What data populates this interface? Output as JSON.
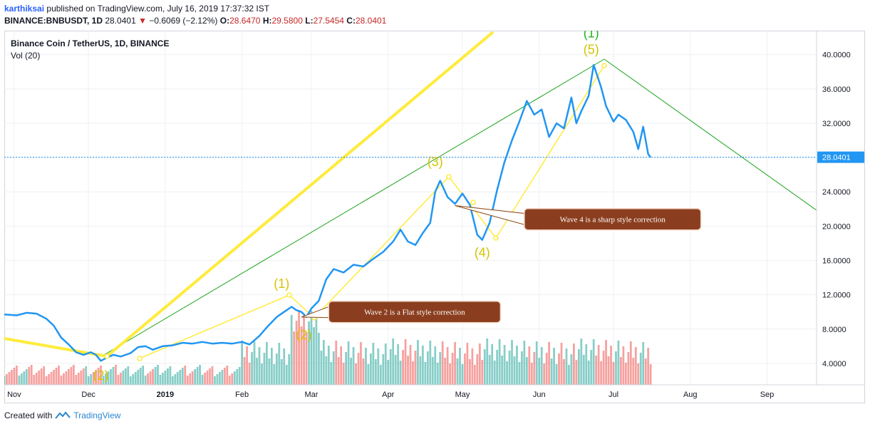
{
  "header": {
    "user": "karthiksai",
    "published": "published on TradingView.com, July 16, 2019 17:37:32 IST",
    "symbol": "BINANCE:BNBUSDT, 1D",
    "last": "28.0401",
    "change": "−0.6069 (−2.12%)",
    "o_label": "O:",
    "o": "28.6470",
    "h_label": "H:",
    "h": "29.5800",
    "l_label": "L:",
    "l": "27.5454",
    "c_label": "C:",
    "c": "28.0401"
  },
  "footer": {
    "created_with": "Created with",
    "brand": "TradingView"
  },
  "chart_data": {
    "type": "line",
    "title": "Binance Coin / TetherUS, 1D, BINANCE",
    "subtitle": "Vol (20)",
    "last_price_label": "28.0401",
    "last_price": 28.0401,
    "ylim": [
      1.5,
      42.8
    ],
    "x_tick_labels": [
      "Nov",
      "Dec",
      "2019",
      "Feb",
      "Mar",
      "Apr",
      "May",
      "Jun",
      "Jul",
      "Aug",
      "Sep"
    ],
    "x_tick_dates": [
      "2018-11-01",
      "2018-12-01",
      "2019-01-01",
      "2019-02-01",
      "2019-03-01",
      "2019-04-01",
      "2019-05-01",
      "2019-06-01",
      "2019-07-01",
      "2019-08-01",
      "2019-09-01"
    ],
    "x_range": [
      "2018-10-28",
      "2019-09-21"
    ],
    "y_tick_labels": [
      "4.0000",
      "8.0000",
      "12.0000",
      "16.0000",
      "20.0000",
      "24.0000",
      "28.0000",
      "32.0000",
      "36.0000",
      "40.0000"
    ],
    "y_tick_values": [
      4,
      8,
      12,
      16,
      20,
      24,
      28,
      32,
      36,
      40
    ],
    "series": [
      {
        "color": "#2196f3",
        "points": [
          [
            "2018-10-28",
            9.7
          ],
          [
            "2018-11-02",
            9.6
          ],
          [
            "2018-11-06",
            9.9
          ],
          [
            "2018-11-10",
            9.8
          ],
          [
            "2018-11-14",
            9.2
          ],
          [
            "2018-11-17",
            8.4
          ],
          [
            "2018-11-20",
            7.0
          ],
          [
            "2018-11-23",
            6.2
          ],
          [
            "2018-11-26",
            5.3
          ],
          [
            "2018-11-29",
            5.0
          ],
          [
            "2018-12-02",
            5.3
          ],
          [
            "2018-12-04",
            5.0
          ],
          [
            "2018-12-06",
            4.3
          ],
          [
            "2018-12-08",
            4.6
          ],
          [
            "2018-12-11",
            5.0
          ],
          [
            "2018-12-14",
            4.8
          ],
          [
            "2018-12-18",
            5.2
          ],
          [
            "2018-12-21",
            5.9
          ],
          [
            "2018-12-24",
            6.0
          ],
          [
            "2018-12-27",
            5.6
          ],
          [
            "2018-12-31",
            6.0
          ],
          [
            "2019-01-04",
            6.1
          ],
          [
            "2019-01-08",
            6.4
          ],
          [
            "2019-01-12",
            6.3
          ],
          [
            "2019-01-16",
            6.5
          ],
          [
            "2019-01-20",
            6.3
          ],
          [
            "2019-01-24",
            6.4
          ],
          [
            "2019-01-28",
            6.3
          ],
          [
            "2019-02-01",
            6.5
          ],
          [
            "2019-02-04",
            6.2
          ],
          [
            "2019-02-08",
            7.2
          ],
          [
            "2019-02-11",
            8.2
          ],
          [
            "2019-02-15",
            9.4
          ],
          [
            "2019-02-18",
            10.0
          ],
          [
            "2019-02-21",
            10.6
          ],
          [
            "2019-02-23",
            10.2
          ],
          [
            "2019-02-25",
            10.0
          ],
          [
            "2019-02-27",
            9.4
          ],
          [
            "2019-03-01",
            10.4
          ],
          [
            "2019-03-04",
            11.3
          ],
          [
            "2019-03-07",
            13.8
          ],
          [
            "2019-03-10",
            15.0
          ],
          [
            "2019-03-14",
            14.6
          ],
          [
            "2019-03-18",
            15.5
          ],
          [
            "2019-03-22",
            15.3
          ],
          [
            "2019-03-26",
            16.2
          ],
          [
            "2019-03-30",
            17.0
          ],
          [
            "2019-04-03",
            18.2
          ],
          [
            "2019-04-06",
            19.6
          ],
          [
            "2019-04-09",
            18.2
          ],
          [
            "2019-04-12",
            17.8
          ],
          [
            "2019-04-15",
            19.2
          ],
          [
            "2019-04-18",
            20.4
          ],
          [
            "2019-04-20",
            24.0
          ],
          [
            "2019-04-22",
            25.3
          ],
          [
            "2019-04-25",
            23.4
          ],
          [
            "2019-04-28",
            22.6
          ],
          [
            "2019-05-01",
            23.8
          ],
          [
            "2019-05-04",
            22.5
          ],
          [
            "2019-05-07",
            19.0
          ],
          [
            "2019-05-09",
            18.4
          ],
          [
            "2019-05-12",
            20.4
          ],
          [
            "2019-05-15",
            24.2
          ],
          [
            "2019-05-18",
            27.5
          ],
          [
            "2019-05-21",
            30.0
          ],
          [
            "2019-05-24",
            32.2
          ],
          [
            "2019-05-27",
            34.6
          ],
          [
            "2019-05-30",
            33.0
          ],
          [
            "2019-06-02",
            33.6
          ],
          [
            "2019-06-05",
            30.4
          ],
          [
            "2019-06-08",
            32.0
          ],
          [
            "2019-06-11",
            31.4
          ],
          [
            "2019-06-14",
            35.0
          ],
          [
            "2019-06-16",
            32.0
          ],
          [
            "2019-06-18",
            33.4
          ],
          [
            "2019-06-21",
            35.2
          ],
          [
            "2019-06-23",
            38.8
          ],
          [
            "2019-06-26",
            36.2
          ],
          [
            "2019-06-28",
            34.0
          ],
          [
            "2019-07-01",
            32.2
          ],
          [
            "2019-07-03",
            33.0
          ],
          [
            "2019-07-06",
            32.4
          ],
          [
            "2019-07-09",
            31.0
          ],
          [
            "2019-07-11",
            29.0
          ],
          [
            "2019-07-13",
            31.6
          ],
          [
            "2019-07-15",
            28.4
          ],
          [
            "2019-07-16",
            28.04
          ]
        ]
      }
    ],
    "wave_labels": [
      {
        "text": "(2)",
        "date": "2018-12-06",
        "price": 2.1,
        "color": "#d4c400"
      },
      {
        "text": "(1)",
        "date": "2019-02-17",
        "price": 12.8,
        "color": "#d4c400"
      },
      {
        "text": "(2)",
        "date": "2019-02-26",
        "price": 6.8,
        "color": "#d4c400"
      },
      {
        "text": "(3)",
        "date": "2019-04-20",
        "price": 27.0,
        "color": "#d4c400"
      },
      {
        "text": "(4)",
        "date": "2019-05-09",
        "price": 16.4,
        "color": "#d4c400"
      },
      {
        "text": "(5)",
        "date": "2019-06-22",
        "price": 40.1,
        "color": "#d4c400"
      },
      {
        "text": "(1)",
        "date": "2019-06-22",
        "price": 42.0,
        "color": "#21b521"
      }
    ],
    "annotations": [
      {
        "text": "Wave 4 is a sharp style correction",
        "anchor_date": "2019-04-28",
        "anchor_price": 22.4,
        "box_date": "2019-05-26",
        "box_price": 20.8
      },
      {
        "text": "Wave 2 is a Flat style correction",
        "anchor_date": "2019-02-25",
        "anchor_price": 9.4,
        "box_date": "2019-03-08",
        "box_price": 10.0
      }
    ]
  }
}
